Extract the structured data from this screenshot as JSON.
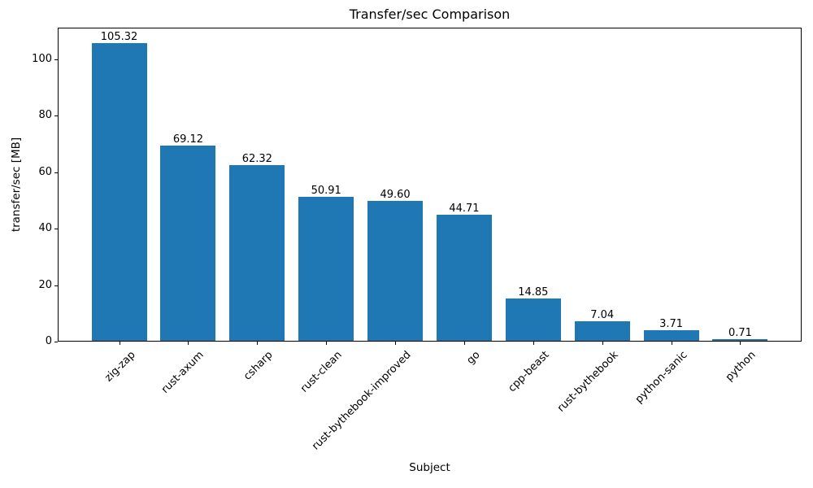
{
  "figure": {
    "background": "#ffffff",
    "text_color": "#000000",
    "axis_color": "#000000"
  },
  "chart_data": {
    "type": "bar",
    "title": "Transfer/sec Comparison",
    "xlabel": "Subject",
    "ylabel": "transfer/sec [MB]",
    "categories": [
      "zig-zap",
      "rust-axum",
      "csharp",
      "rust-clean",
      "rust-bythebook-improved",
      "go",
      "cpp-beast",
      "rust-bythebook",
      "python-sanic",
      "python"
    ],
    "values": [
      105.32,
      69.12,
      62.32,
      50.91,
      49.6,
      44.71,
      14.85,
      7.04,
      3.71,
      0.71
    ],
    "value_labels": [
      "105.32",
      "69.12",
      "62.32",
      "50.91",
      "49.60",
      "44.71",
      "14.85",
      "7.04",
      "3.71",
      "0.71"
    ],
    "ytick_values": [
      0,
      20,
      40,
      60,
      80,
      100
    ],
    "ytick_labels": [
      "0",
      "20",
      "40",
      "60",
      "80",
      "100"
    ],
    "ylim": [
      0,
      111.2
    ],
    "bar_color": "#1f77b4",
    "grid": false,
    "legend": null,
    "xtick_rotation_deg": 45
  }
}
